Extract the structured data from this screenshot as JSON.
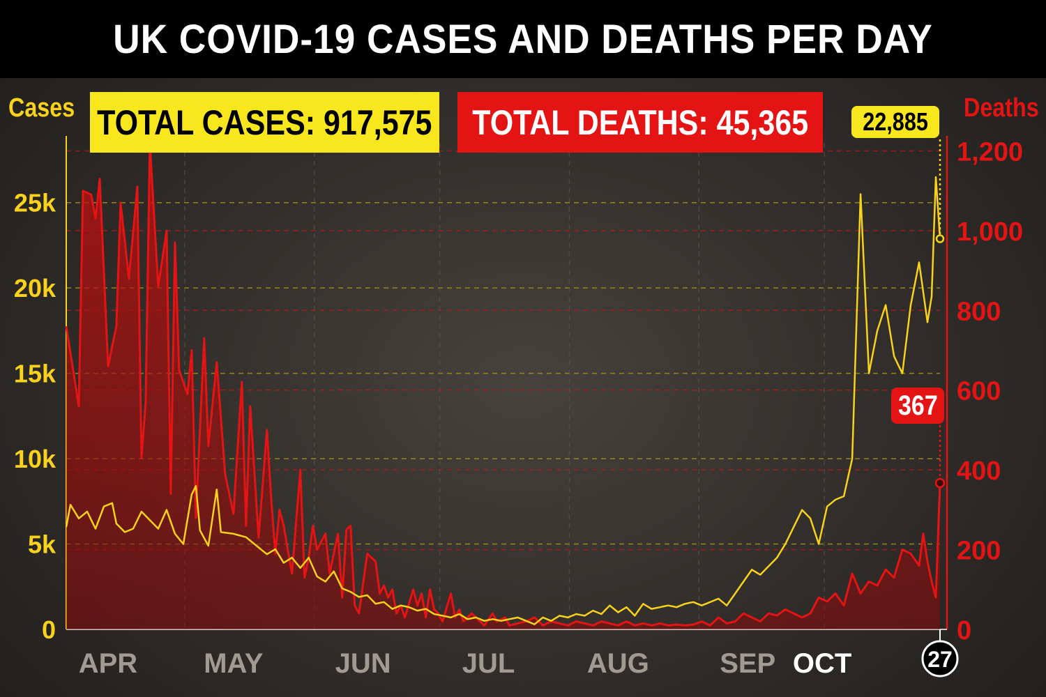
{
  "title": "UK COVID-19 CASES AND DEATHS PER DAY",
  "totals": {
    "cases_label": "TOTAL CASES: 917,575",
    "deaths_label": "TOTAL DEATHS: 45,365"
  },
  "axes": {
    "left_title": "Cases",
    "right_title": "Deaths"
  },
  "callouts": {
    "latest_cases": "22,885",
    "latest_deaths": "367",
    "latest_day": "27"
  },
  "colors": {
    "cases": "#f8d21c",
    "deaths": "#e41414",
    "background": "#2b2926"
  },
  "chart_data": {
    "type": "line",
    "title": "UK COVID-19 CASES AND DEATHS PER DAY",
    "x": {
      "type": "days",
      "day_count": 210,
      "month_labels": [
        {
          "label": "APR",
          "day": 10
        },
        {
          "label": "MAY",
          "day": 40
        },
        {
          "label": "JUN",
          "day": 71
        },
        {
          "label": "JUL",
          "day": 101
        },
        {
          "label": "AUG",
          "day": 132
        },
        {
          "label": "SEP",
          "day": 163
        },
        {
          "label": "OCT",
          "day": 180,
          "current": true
        },
        {
          "label": "27",
          "day": 209,
          "circled": true
        }
      ]
    },
    "y_left": {
      "label": "Cases",
      "range": [
        0,
        28500
      ],
      "ticks": [
        0,
        5000,
        10000,
        15000,
        20000,
        25000
      ],
      "tick_labels": [
        "0",
        "5k",
        "10k",
        "15k",
        "20k",
        "25k"
      ]
    },
    "y_right": {
      "label": "Deaths",
      "range": [
        0,
        1220
      ],
      "ticks": [
        0,
        200,
        400,
        600,
        800,
        1000,
        1200
      ],
      "tick_labels": [
        "0",
        "200",
        "400",
        "600",
        "800",
        "1,000",
        "1,200"
      ]
    },
    "grid": true,
    "series": [
      {
        "name": "Cases",
        "axis": "left",
        "keyframes": [
          [
            0,
            6000
          ],
          [
            1,
            7300
          ],
          [
            3,
            6500
          ],
          [
            5,
            6900
          ],
          [
            7,
            5900
          ],
          [
            9,
            7200
          ],
          [
            11,
            7400
          ],
          [
            12,
            6200
          ],
          [
            14,
            5700
          ],
          [
            16,
            5900
          ],
          [
            18,
            6900
          ],
          [
            20,
            6400
          ],
          [
            22,
            5900
          ],
          [
            24,
            7000
          ],
          [
            26,
            5600
          ],
          [
            28,
            5000
          ],
          [
            30,
            7900
          ],
          [
            31,
            8400
          ],
          [
            32,
            5800
          ],
          [
            34,
            4900
          ],
          [
            36,
            8200
          ],
          [
            37,
            5700
          ],
          [
            40,
            5600
          ],
          [
            43,
            5400
          ],
          [
            46,
            4800
          ],
          [
            48,
            4400
          ],
          [
            50,
            4700
          ],
          [
            52,
            3900
          ],
          [
            54,
            4200
          ],
          [
            56,
            3600
          ],
          [
            58,
            4200
          ],
          [
            60,
            3100
          ],
          [
            62,
            2800
          ],
          [
            64,
            3400
          ],
          [
            66,
            2400
          ],
          [
            68,
            2200
          ],
          [
            70,
            1900
          ],
          [
            72,
            2000
          ],
          [
            74,
            1500
          ],
          [
            76,
            1600
          ],
          [
            78,
            1200
          ],
          [
            80,
            1400
          ],
          [
            82,
            1300
          ],
          [
            84,
            1100
          ],
          [
            86,
            1200
          ],
          [
            88,
            900
          ],
          [
            90,
            800
          ],
          [
            92,
            700
          ],
          [
            94,
            900
          ],
          [
            96,
            600
          ],
          [
            98,
            700
          ],
          [
            100,
            500
          ],
          [
            102,
            600
          ],
          [
            104,
            500
          ],
          [
            106,
            600
          ],
          [
            108,
            700
          ],
          [
            110,
            500
          ],
          [
            112,
            300
          ],
          [
            114,
            700
          ],
          [
            116,
            500
          ],
          [
            118,
            800
          ],
          [
            120,
            700
          ],
          [
            122,
            900
          ],
          [
            124,
            800
          ],
          [
            126,
            1100
          ],
          [
            128,
            900
          ],
          [
            130,
            1400
          ],
          [
            132,
            1000
          ],
          [
            134,
            1300
          ],
          [
            136,
            800
          ],
          [
            138,
            1500
          ],
          [
            140,
            1200
          ],
          [
            142,
            1300
          ],
          [
            144,
            1400
          ],
          [
            146,
            1300
          ],
          [
            148,
            1500
          ],
          [
            150,
            1600
          ],
          [
            152,
            1400
          ],
          [
            154,
            1600
          ],
          [
            156,
            1800
          ],
          [
            158,
            1400
          ],
          [
            160,
            2100
          ],
          [
            162,
            2800
          ],
          [
            164,
            3500
          ],
          [
            166,
            3200
          ],
          [
            168,
            3700
          ],
          [
            170,
            4200
          ],
          [
            172,
            5000
          ],
          [
            174,
            6000
          ],
          [
            176,
            7000
          ],
          [
            178,
            6500
          ],
          [
            180,
            5000
          ],
          [
            182,
            7200
          ],
          [
            184,
            7600
          ],
          [
            186,
            7800
          ],
          [
            188,
            10000
          ],
          [
            190,
            25500
          ],
          [
            192,
            15000
          ],
          [
            194,
            17500
          ],
          [
            196,
            19000
          ],
          [
            198,
            16000
          ],
          [
            200,
            15000
          ],
          [
            202,
            19000
          ],
          [
            204,
            21500
          ],
          [
            206,
            18000
          ],
          [
            207,
            19500
          ],
          [
            208,
            26500
          ],
          [
            209,
            22885
          ]
        ]
      },
      {
        "name": "Deaths",
        "axis": "right",
        "keyframes": [
          [
            0,
            760
          ],
          [
            3,
            560
          ],
          [
            4,
            1100
          ],
          [
            6,
            1090
          ],
          [
            7,
            1030
          ],
          [
            8,
            1130
          ],
          [
            10,
            660
          ],
          [
            12,
            760
          ],
          [
            13,
            1070
          ],
          [
            15,
            880
          ],
          [
            17,
            1110
          ],
          [
            18,
            430
          ],
          [
            19,
            570
          ],
          [
            20,
            1220
          ],
          [
            22,
            860
          ],
          [
            24,
            1000
          ],
          [
            25,
            340
          ],
          [
            26,
            970
          ],
          [
            27,
            650
          ],
          [
            29,
            590
          ],
          [
            30,
            700
          ],
          [
            31,
            280
          ],
          [
            33,
            730
          ],
          [
            34,
            460
          ],
          [
            36,
            670
          ],
          [
            38,
            390
          ],
          [
            40,
            290
          ],
          [
            42,
            620
          ],
          [
            43,
            260
          ],
          [
            44,
            560
          ],
          [
            46,
            230
          ],
          [
            48,
            500
          ],
          [
            49,
            330
          ],
          [
            50,
            190
          ],
          [
            51,
            300
          ],
          [
            52,
            260
          ],
          [
            54,
            140
          ],
          [
            56,
            400
          ],
          [
            57,
            130
          ],
          [
            58,
            180
          ],
          [
            59,
            260
          ],
          [
            60,
            200
          ],
          [
            62,
            240
          ],
          [
            63,
            140
          ],
          [
            65,
            240
          ],
          [
            66,
            80
          ],
          [
            67,
            250
          ],
          [
            68,
            260
          ],
          [
            69,
            60
          ],
          [
            70,
            40
          ],
          [
            72,
            190
          ],
          [
            74,
            170
          ],
          [
            75,
            90
          ],
          [
            76,
            110
          ],
          [
            77,
            80
          ],
          [
            78,
            100
          ],
          [
            79,
            40
          ],
          [
            80,
            60
          ],
          [
            81,
            30
          ],
          [
            83,
            100
          ],
          [
            84,
            60
          ],
          [
            85,
            90
          ],
          [
            86,
            30
          ],
          [
            87,
            100
          ],
          [
            88,
            50
          ],
          [
            89,
            40
          ],
          [
            90,
            20
          ],
          [
            92,
            90
          ],
          [
            93,
            30
          ],
          [
            94,
            50
          ],
          [
            95,
            20
          ],
          [
            97,
            40
          ],
          [
            98,
            30
          ],
          [
            100,
            10
          ],
          [
            102,
            40
          ],
          [
            103,
            20
          ],
          [
            105,
            30
          ],
          [
            106,
            10
          ],
          [
            108,
            15
          ],
          [
            110,
            20
          ],
          [
            112,
            30
          ],
          [
            114,
            10
          ],
          [
            116,
            20
          ],
          [
            118,
            15
          ],
          [
            120,
            10
          ],
          [
            122,
            20
          ],
          [
            124,
            15
          ],
          [
            126,
            10
          ],
          [
            128,
            20
          ],
          [
            130,
            15
          ],
          [
            132,
            10
          ],
          [
            134,
            20
          ],
          [
            136,
            10
          ],
          [
            138,
            15
          ],
          [
            140,
            10
          ],
          [
            142,
            15
          ],
          [
            144,
            10
          ],
          [
            146,
            12
          ],
          [
            148,
            10
          ],
          [
            150,
            12
          ],
          [
            152,
            20
          ],
          [
            154,
            10
          ],
          [
            156,
            30
          ],
          [
            158,
            15
          ],
          [
            160,
            20
          ],
          [
            162,
            40
          ],
          [
            164,
            30
          ],
          [
            166,
            20
          ],
          [
            168,
            40
          ],
          [
            170,
            35
          ],
          [
            172,
            50
          ],
          [
            174,
            40
          ],
          [
            176,
            30
          ],
          [
            178,
            40
          ],
          [
            180,
            80
          ],
          [
            182,
            70
          ],
          [
            184,
            90
          ],
          [
            186,
            60
          ],
          [
            188,
            140
          ],
          [
            190,
            90
          ],
          [
            192,
            120
          ],
          [
            194,
            110
          ],
          [
            196,
            150
          ],
          [
            198,
            130
          ],
          [
            200,
            200
          ],
          [
            202,
            190
          ],
          [
            204,
            160
          ],
          [
            205,
            240
          ],
          [
            206,
            170
          ],
          [
            207,
            120
          ],
          [
            208,
            80
          ],
          [
            209,
            367
          ]
        ]
      }
    ]
  }
}
